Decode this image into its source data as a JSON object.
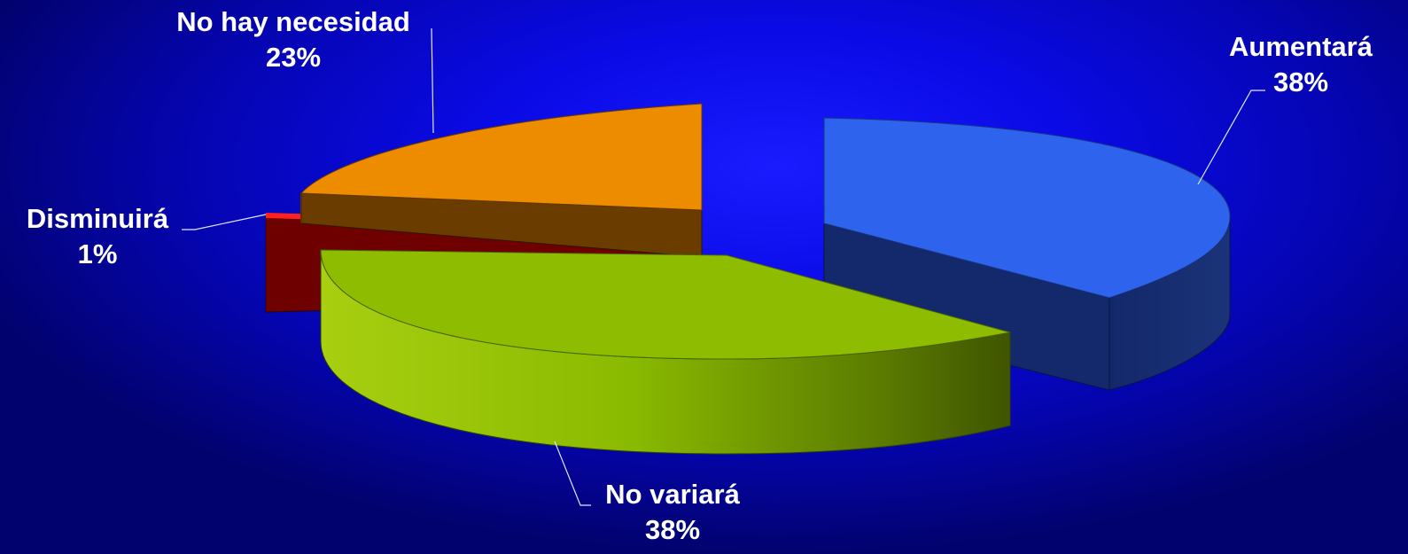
{
  "chart_data": {
    "type": "pie",
    "style": "3d-exploded",
    "slices": [
      {
        "name": "Aumentará",
        "value": 38,
        "label": "38%",
        "color": "#2e63ee"
      },
      {
        "name": "No variará",
        "value": 38,
        "label": "38%",
        "color": "#8ebc00"
      },
      {
        "name": "Disminuirá",
        "value": 1,
        "label": "1%",
        "color": "#e00000"
      },
      {
        "name": "No hay necesidad",
        "value": 23,
        "label": "23%",
        "color": "#ee8c00"
      }
    ],
    "legend": "none",
    "background": "#0a0ae6"
  }
}
